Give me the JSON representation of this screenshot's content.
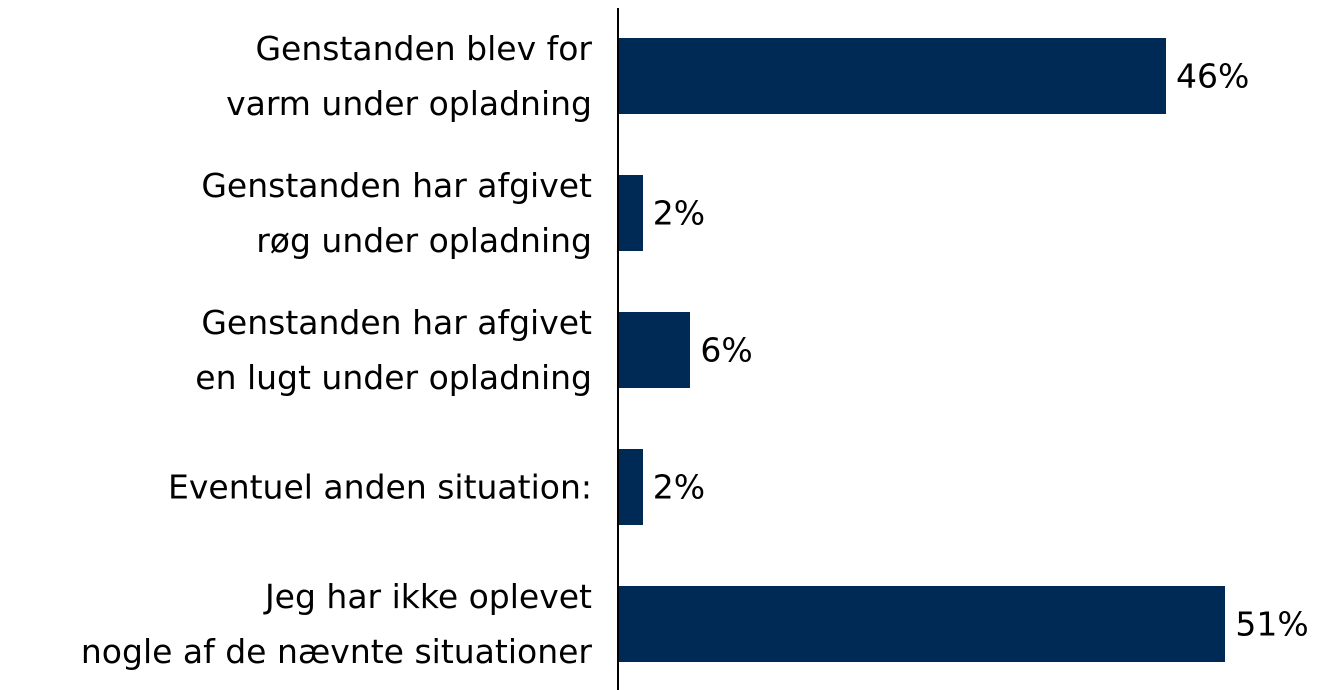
{
  "chart_data": {
    "type": "hbar",
    "categories": [
      "Genstanden blev for\nvarm under opladning",
      "Genstanden har afgivet\nrøg under opladning",
      "Genstanden har afgivet\nen lugt under opladning",
      "Eventuel anden situation:",
      "Jeg har ikke oplevet\nnogle af de nævnte situationer"
    ],
    "values": [
      46,
      2,
      6,
      2,
      51
    ],
    "value_labels": [
      "46%",
      "2%",
      "6%",
      "2%",
      "51%"
    ],
    "color": "#002a56",
    "xlim": [
      0,
      55
    ]
  }
}
